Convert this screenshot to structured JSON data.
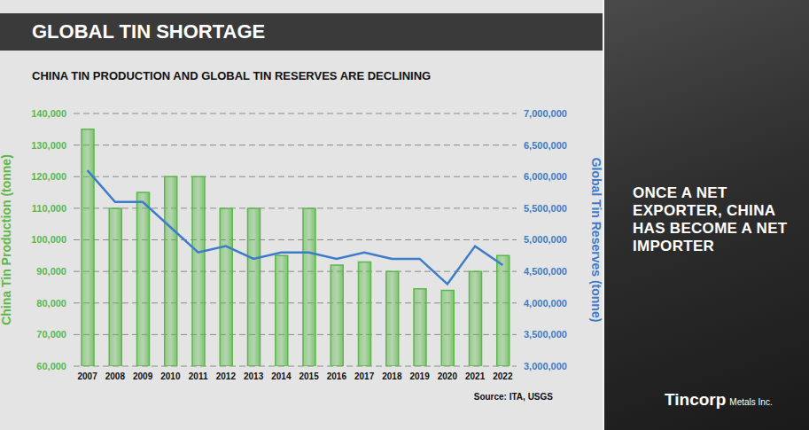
{
  "chart_data": {
    "type": "bar",
    "title": "GLOBAL TIN SHORTAGE",
    "subtitle": "CHINA TIN PRODUCTION AND GLOBAL TIN RESERVES ARE DECLINING",
    "source": "Source: ITA, USGS",
    "categories": [
      "2007",
      "2008",
      "2009",
      "2010",
      "2011",
      "2012",
      "2013",
      "2014",
      "2015",
      "2016",
      "2017",
      "2018",
      "2019",
      "2020",
      "2021",
      "2022"
    ],
    "series": [
      {
        "name": "China Tin Production (tonne)",
        "type": "bar",
        "color": "#5cb84a",
        "values": [
          135000,
          110000,
          115000,
          120000,
          120000,
          110000,
          110000,
          95000,
          110000,
          92000,
          93000,
          90000,
          84500,
          84000,
          90000,
          95000
        ]
      },
      {
        "name": "Global Tin Reserves (tonne)",
        "type": "line",
        "axis": "y2",
        "color": "#3d7cc9",
        "values": [
          6100000,
          5600000,
          5600000,
          5200000,
          4800000,
          4900000,
          4700000,
          4800000,
          4800000,
          4700000,
          4800000,
          4700000,
          4700000,
          4300000,
          4900000,
          4600000
        ]
      }
    ],
    "ylim": [
      60000,
      140000
    ],
    "yticks": [
      {
        "value": 60000,
        "label": "60,000"
      },
      {
        "value": 70000,
        "label": "70,000"
      },
      {
        "value": 80000,
        "label": "80,000"
      },
      {
        "value": 90000,
        "label": "90,000"
      },
      {
        "value": 100000,
        "label": "100,000"
      },
      {
        "value": 110000,
        "label": "110,000"
      },
      {
        "value": 120000,
        "label": "120,000"
      },
      {
        "value": 130000,
        "label": "130,000"
      },
      {
        "value": 140000,
        "label": "140,000"
      }
    ],
    "y2lim": [
      3000000,
      7000000
    ],
    "y2ticks": [
      {
        "value": 3000000,
        "label": "3,000,000"
      },
      {
        "value": 3500000,
        "label": "3,500,000"
      },
      {
        "value": 4000000,
        "label": "4,000,000"
      },
      {
        "value": 4500000,
        "label": "4,500,000"
      },
      {
        "value": 5000000,
        "label": "5,000,000"
      },
      {
        "value": 5500000,
        "label": "5,500,000"
      },
      {
        "value": 6000000,
        "label": "6,000,000"
      },
      {
        "value": 6500000,
        "label": "6,500,000"
      },
      {
        "value": 7000000,
        "label": "7,000,000"
      }
    ],
    "grid": true
  },
  "panel": {
    "text": "ONCE A NET EXPORTER, CHINA HAS BECOME A NET IMPORTER",
    "logo": "Tincorp",
    "logo_suffix": "Metals Inc."
  }
}
